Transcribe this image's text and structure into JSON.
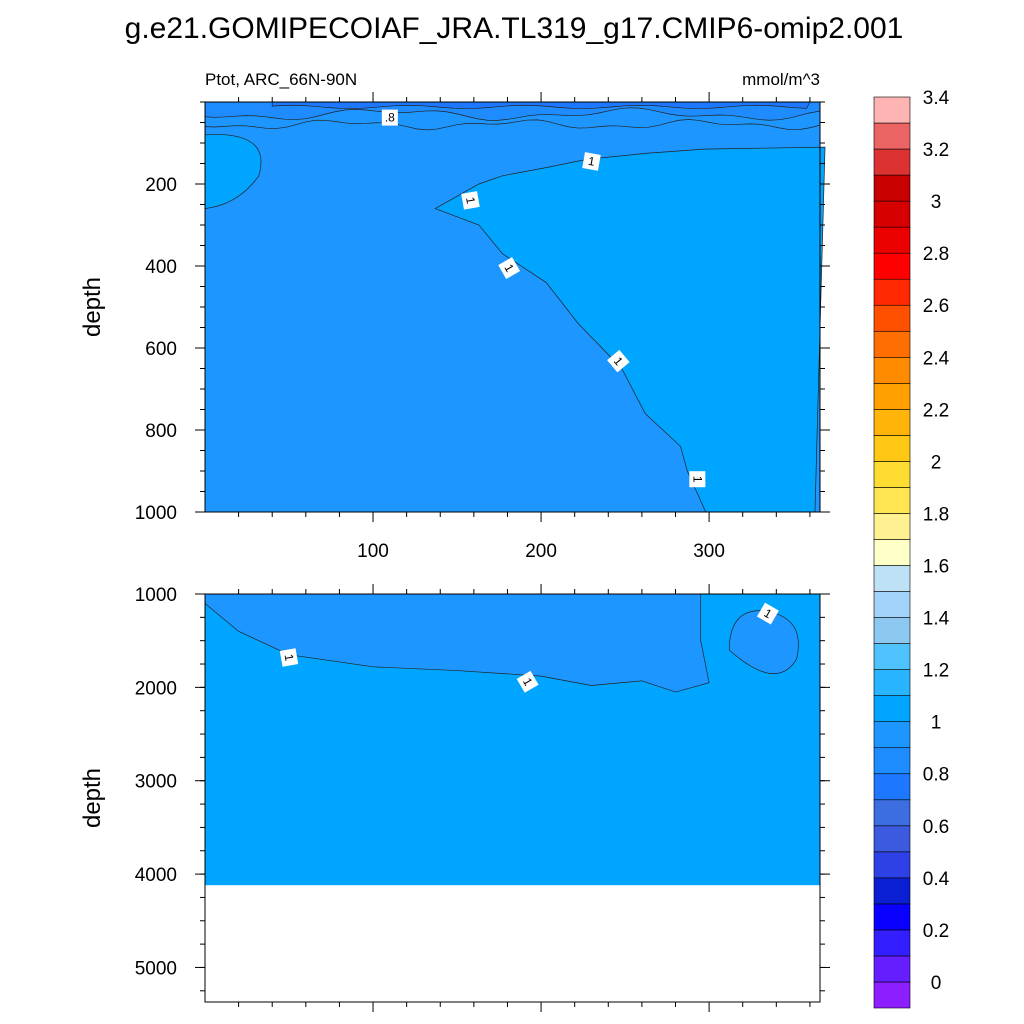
{
  "chart_data": {
    "type": "contour",
    "title": "g.e21.GOMIPECOIAF_JRA.TL319_g17.CMIP6-omip2.001",
    "variable_label": "Ptot, ARC_66N-90N",
    "units": "mmol/m^3",
    "x_ticks": [
      "100",
      "200",
      "300"
    ],
    "panels": [
      {
        "name": "upper",
        "ylabel": "depth",
        "x_range": [
          0,
          366
        ],
        "y_range": [
          0,
          1000
        ],
        "y_reversed": true,
        "y_ticks": [
          "200",
          "400",
          "600",
          "800",
          "1000"
        ],
        "y_tick_values": [
          200,
          400,
          600,
          800,
          1000
        ],
        "contour_labels": [
          ".8",
          "1",
          "1",
          "1",
          "1",
          "1"
        ],
        "fill_regions": [
          {
            "level_range": "0.8-0.9",
            "color": "#1e8cff"
          },
          {
            "level_range": "0.9-1.0",
            "color": "#1e96ff"
          },
          {
            "level_range": "1.0-1.1",
            "color": "#00a5ff"
          }
        ]
      },
      {
        "name": "lower",
        "ylabel": "depth",
        "x_range": [
          0,
          366
        ],
        "y_range": [
          1000,
          5370
        ],
        "y_reversed": true,
        "y_ticks": [
          "1000",
          "2000",
          "3000",
          "4000",
          "5000"
        ],
        "y_tick_values": [
          1000,
          2000,
          3000,
          4000,
          5000
        ],
        "seafloor_depth": 4120,
        "contour_labels": [
          "1",
          "1",
          "1"
        ],
        "fill_regions": [
          {
            "level_range": "0.9-1.0",
            "color": "#1e96ff"
          },
          {
            "level_range": "1.0-1.1",
            "color": "#00a5ff"
          }
        ]
      }
    ],
    "colorbar": {
      "labels": [
        "0",
        "0.2",
        "0.4",
        "0.6",
        "0.8",
        "1",
        "1.2",
        "1.4",
        "1.6",
        "1.8",
        "2",
        "2.2",
        "2.4",
        "2.6",
        "2.8",
        "3",
        "3.2",
        "3.4"
      ],
      "colors": [
        "#8c1eff",
        "#641eff",
        "#321eff",
        "#0a00ff",
        "#0a1ed2",
        "#2d41e6",
        "#3c5ade",
        "#3c6ee1",
        "#1e78ff",
        "#1e8cff",
        "#1e96ff",
        "#00a5ff",
        "#28b4ff",
        "#50c3ff",
        "#8cc8f0",
        "#a0d2fa",
        "#bee1f5",
        "#ffffc8",
        "#fff091",
        "#ffe650",
        "#ffdc32",
        "#ffc814",
        "#ffb40a",
        "#ffa000",
        "#ff8c00",
        "#ff6e00",
        "#ff5000",
        "#ff2800",
        "#ff0000",
        "#eb0000",
        "#d70000",
        "#c80000",
        "#dc3232",
        "#eb6464",
        "#ffb4b4"
      ]
    }
  }
}
